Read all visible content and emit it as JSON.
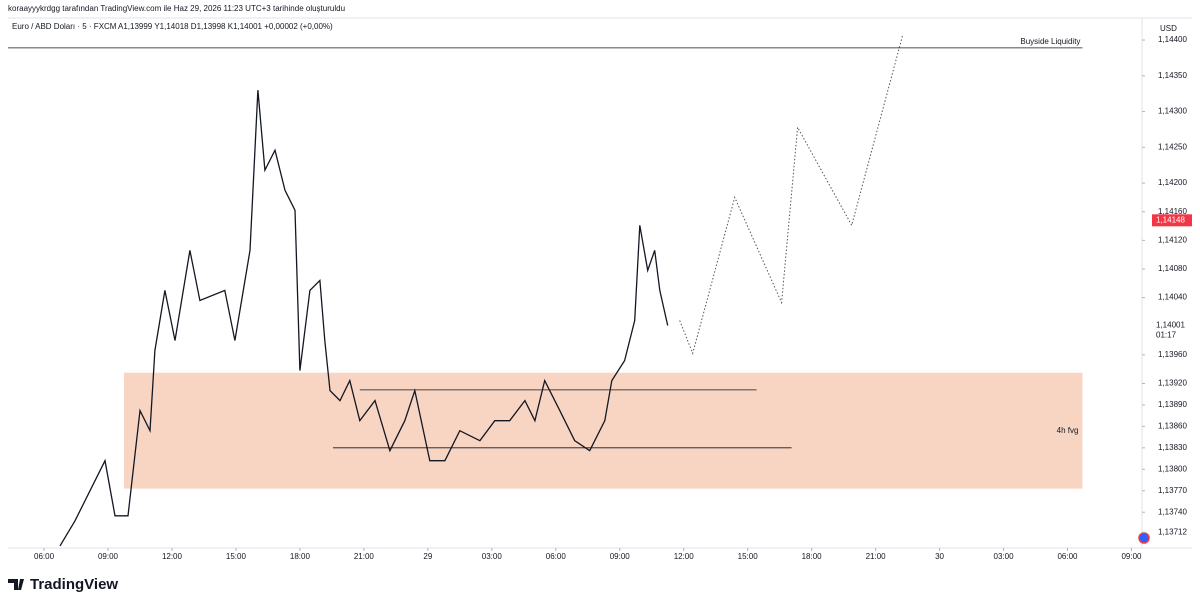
{
  "header": {
    "credit": "koraayyykrdgg tarafından TradingView.com ile Haz 29, 2026 11:23 UTC+3 tarihinde oluşturuldu",
    "symbol": "Euro / ABD Doları · 5 · FXCM",
    "ohlc": "A1,13999  Y1,14018  D1,13998  K1,14001  +0,00002 (+0,00%)",
    "currency": "USD",
    "logo": "TradingView"
  },
  "chart_data": {
    "type": "line",
    "xlim": [
      -1.69,
      51.4
    ],
    "ylim": [
      1.1369,
      1.14428
    ],
    "xticks": [
      {
        "value": 0,
        "label": "06:00"
      },
      {
        "value": 3,
        "label": "09:00"
      },
      {
        "value": 6,
        "label": "12:00"
      },
      {
        "value": 9,
        "label": "15:00"
      },
      {
        "value": 12,
        "label": "18:00"
      },
      {
        "value": 15,
        "label": "21:00"
      },
      {
        "value": 18,
        "label": "29"
      },
      {
        "value": 21,
        "label": "03:00"
      },
      {
        "value": 24,
        "label": "06:00"
      },
      {
        "value": 27,
        "label": "09:00"
      },
      {
        "value": 30,
        "label": "12:00"
      },
      {
        "value": 33,
        "label": "15:00"
      },
      {
        "value": 36,
        "label": "18:00"
      },
      {
        "value": 39,
        "label": "21:00"
      },
      {
        "value": 42,
        "label": "30"
      },
      {
        "value": 45,
        "label": "03:00"
      },
      {
        "value": 48,
        "label": "06:00"
      },
      {
        "value": 51,
        "label": "09:00"
      }
    ],
    "yticks": [
      {
        "value": 1.144,
        "label": "1,14400"
      },
      {
        "value": 1.1435,
        "label": "1,14350"
      },
      {
        "value": 1.143,
        "label": "1,14300"
      },
      {
        "value": 1.1425,
        "label": "1,14250"
      },
      {
        "value": 1.142,
        "label": "1,14200"
      },
      {
        "value": 1.1416,
        "label": "1,14160"
      },
      {
        "value": 1.1412,
        "label": "1,14120"
      },
      {
        "value": 1.1408,
        "label": "1,14080"
      },
      {
        "value": 1.1404,
        "label": "1,14040"
      },
      {
        "value": 1.1396,
        "label": "1,13960"
      },
      {
        "value": 1.1392,
        "label": "1,13920"
      },
      {
        "value": 1.1389,
        "label": "1,13890"
      },
      {
        "value": 1.1386,
        "label": "1,13860"
      },
      {
        "value": 1.1383,
        "label": "1,13830"
      },
      {
        "value": 1.138,
        "label": "1,13800"
      },
      {
        "value": 1.1377,
        "label": "1,13770"
      },
      {
        "value": 1.1374,
        "label": "1,13740"
      },
      {
        "value": 1.13712,
        "label": "1,13712"
      }
    ],
    "series": [
      {
        "color": "#131722",
        "style": "solid",
        "x": [
          0.75,
          1.45,
          2.86,
          3.33,
          3.94,
          4.5,
          4.97,
          5.2,
          5.67,
          6.14,
          6.84,
          7.31,
          8.48,
          8.95,
          9.66,
          10.03,
          10.36,
          10.83,
          11.3,
          11.77,
          12.0,
          12.47,
          12.94,
          13.17,
          13.41,
          13.88,
          14.34,
          14.81,
          15.52,
          16.22,
          16.92,
          17.39,
          18.09,
          18.8,
          19.5,
          20.44,
          21.14,
          21.84,
          22.55,
          23.02,
          23.48,
          24.19,
          24.89,
          25.59,
          26.3,
          26.63,
          27.23,
          27.7,
          27.94,
          28.31,
          28.64,
          28.88,
          29.25
        ],
        "values": [
          1.13693,
          1.13728,
          1.13812,
          1.13735,
          1.13735,
          1.13882,
          1.13854,
          1.13966,
          1.1405,
          1.1398,
          1.14106,
          1.14036,
          1.1405,
          1.1398,
          1.14106,
          1.1433,
          1.14218,
          1.14246,
          1.1419,
          1.14162,
          1.13938,
          1.1405,
          1.14064,
          1.1398,
          1.1391,
          1.13896,
          1.13924,
          1.13868,
          1.13896,
          1.13826,
          1.13868,
          1.1391,
          1.13812,
          1.13812,
          1.13854,
          1.1384,
          1.13868,
          1.13868,
          1.13896,
          1.13868,
          1.13924,
          1.13882,
          1.1384,
          1.13826,
          1.13868,
          1.13924,
          1.13952,
          1.14008,
          1.14141,
          1.14078,
          1.14106,
          1.1405,
          1.14001
        ]
      },
      {
        "color": "#555555",
        "style": "dotted",
        "x": [
          29.81,
          30.42,
          32.39,
          34.59,
          35.34,
          37.88,
          40.27
        ],
        "values": [
          1.14008,
          1.13962,
          1.1418,
          1.14033,
          1.14278,
          1.14141,
          1.14407
        ]
      }
    ],
    "zones": [
      {
        "label": "4h fvg",
        "x": [
          3.75,
          48.7
        ],
        "y": [
          1.13935,
          1.13773
        ],
        "color": "#f8d5c3"
      }
    ],
    "levels": [
      {
        "label": "Buyside Liquidity",
        "value": 1.14389,
        "x": [
          -1.69,
          48.7
        ]
      },
      {
        "value": 1.13911,
        "x": [
          14.81,
          33.42
        ]
      },
      {
        "value": 1.1383,
        "x": [
          13.55,
          35.06
        ]
      }
    ],
    "price_labels": [
      {
        "value": 1.14148,
        "label": "1,14148",
        "color": "#f23645"
      },
      {
        "value": 1.14001,
        "label": "1,14001",
        "sub": "01:17",
        "color": "#ffffff"
      }
    ]
  }
}
